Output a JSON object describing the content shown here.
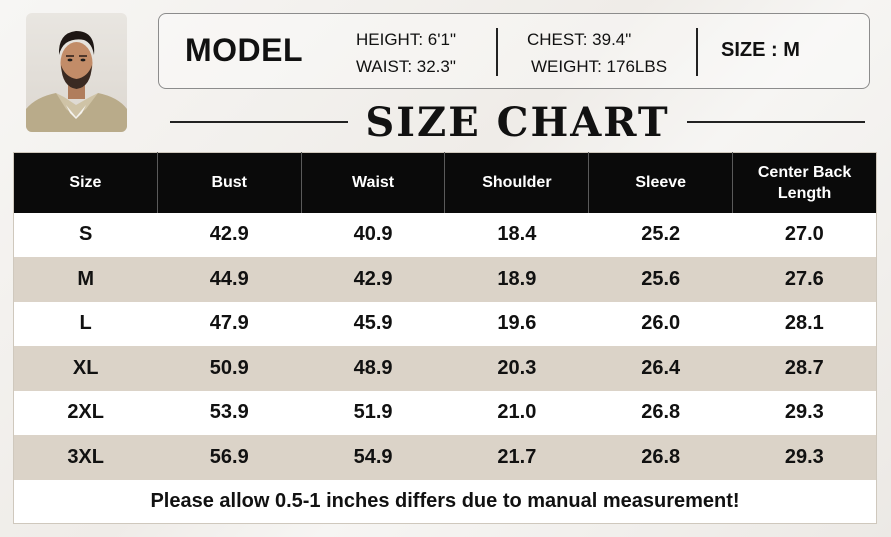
{
  "model": {
    "title": "MODEL",
    "height": "HEIGHT: 6'1\"",
    "waist": "WAIST: 32.3\"",
    "chest": "CHEST: 39.4\"",
    "weight": "WEIGHT: 176LBS",
    "size": "SIZE : M"
  },
  "heading": "SIZE CHART",
  "table": {
    "headers": [
      "Size",
      "Bust",
      "Waist",
      "Shoulder",
      "Sleeve",
      "Center Back Length"
    ],
    "rows": [
      [
        "S",
        "42.9",
        "40.9",
        "18.4",
        "25.2",
        "27.0"
      ],
      [
        "M",
        "44.9",
        "42.9",
        "18.9",
        "25.6",
        "27.6"
      ],
      [
        "L",
        "47.9",
        "45.9",
        "19.6",
        "26.0",
        "28.1"
      ],
      [
        "XL",
        "50.9",
        "48.9",
        "20.3",
        "26.4",
        "28.7"
      ],
      [
        "2XL",
        "53.9",
        "51.9",
        "21.0",
        "26.8",
        "29.3"
      ],
      [
        "3XL",
        "56.9",
        "54.9",
        "21.7",
        "26.8",
        "29.3"
      ]
    ],
    "note": "Please allow 0.5-1 inches differs due to manual measurement!"
  },
  "colors": {
    "header_bg": "#0a0a0a",
    "row_alt_bg": "#dbd3c8",
    "row_bg": "#ffffff"
  }
}
